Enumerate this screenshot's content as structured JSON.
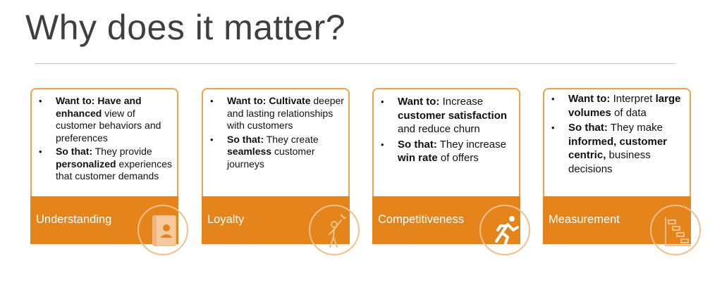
{
  "title": "Why does it matter?",
  "cards": [
    {
      "label": "Understanding",
      "icon": "contact-book-icon",
      "want_prefix": "Want to:",
      "want_bold": "Have and enhanced",
      "want_rest": "view of customer behaviors and preferences",
      "so_prefix": "So that:",
      "so_pre": "They provide",
      "so_bold": "personalized",
      "so_rest": "experiences that customer demands"
    },
    {
      "label": "Loyalty",
      "icon": "person-celebrating-icon",
      "want_prefix": "Want to:",
      "want_bold": "Cultivate",
      "want_rest": "deeper and lasting relationships with customers",
      "so_prefix": "So that:",
      "so_pre": "They create",
      "so_bold": "seamless",
      "so_rest": "customer journeys"
    },
    {
      "label": "Competitiveness",
      "icon": "running-person-icon",
      "want_prefix": "Want to:",
      "want_pre": "Increase",
      "want_bold": "customer satisfaction",
      "want_rest": "and reduce churn",
      "so_prefix": "So that:",
      "so_pre": "They increase",
      "so_bold": "win rate",
      "so_rest": "of offers"
    },
    {
      "label": "Measurement",
      "icon": "gantt-chart-icon",
      "want_prefix": "Want to:",
      "want_pre": "Interpret",
      "want_bold": "large volumes",
      "want_rest": "of data",
      "so_prefix": "So that:",
      "so_pre": "They make",
      "so_bold": "informed, customer centric,",
      "so_rest": "business decisions"
    }
  ]
}
